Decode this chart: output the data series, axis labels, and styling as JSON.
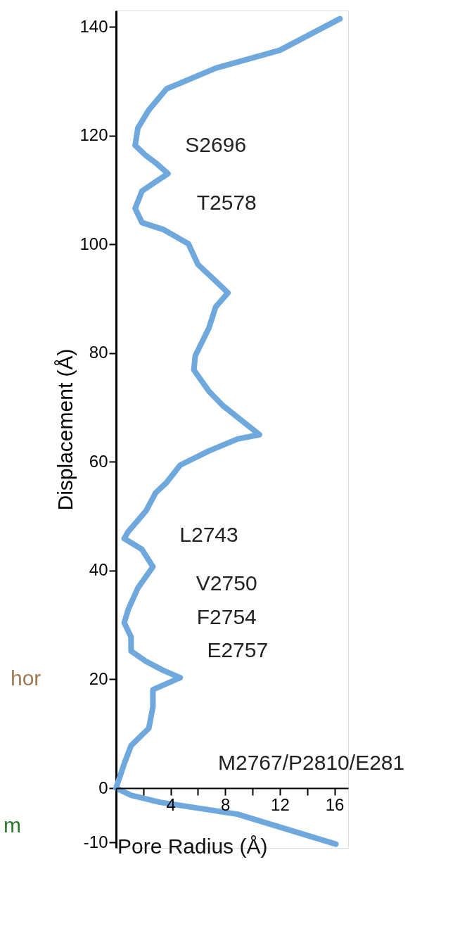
{
  "chart_data": {
    "type": "line",
    "xlabel": "Pore Radius (Å)",
    "ylabel": "Displacement (Å)",
    "x": [
      16.4,
      12.0,
      7.3,
      3.7,
      2.4,
      1.6,
      1.4,
      2.2,
      2.9,
      3.8,
      2.9,
      1.9,
      1.4,
      1.9,
      3.5,
      5.3,
      6.0,
      7.1,
      8.2,
      7.3,
      6.8,
      5.8,
      5.7,
      6.8,
      7.8,
      9.1,
      10.5,
      8.9,
      6.8,
      4.7,
      3.7,
      2.9,
      2.2,
      0.9,
      0.6,
      1.9,
      2.7,
      1.6,
      0.9,
      0.6,
      1.1,
      1.1,
      2.2,
      3.5,
      4.7,
      2.7,
      2.7,
      2.4,
      1.1,
      0.6,
      0,
      1.1,
      3.2,
      8.9,
      16.1
    ],
    "series": [
      {
        "color": "#6fa8dc",
        "values": [
          141.5,
          135.7,
          132.4,
          128.6,
          124.7,
          121.4,
          118.2,
          116.3,
          115,
          113,
          111.5,
          109.8,
          106.6,
          104,
          102.7,
          100.1,
          96.3,
          93.7,
          91.1,
          88.5,
          84.6,
          79.5,
          76.9,
          73,
          70.4,
          67.8,
          65,
          64.2,
          62,
          59.4,
          56.2,
          54.3,
          51,
          47.2,
          45.9,
          43.9,
          40.7,
          36.8,
          32.9,
          30.4,
          27.8,
          25.2,
          23.3,
          21.6,
          20.3,
          18.1,
          14.9,
          11,
          7.8,
          4.5,
          0,
          -1.3,
          -2.6,
          -4.8,
          -10.3
        ]
      }
    ],
    "xlim": [
      0,
      17
    ],
    "xticks": [
      {
        "value": 0,
        "label": null
      },
      {
        "value": 2,
        "label": null
      },
      4,
      {
        "value": 6,
        "label": null
      },
      8,
      {
        "value": 10,
        "label": null
      },
      12,
      {
        "value": 14,
        "label": null
      },
      16
    ],
    "ylim": [
      -11,
      143
    ],
    "yticks": [
      -10,
      0,
      20,
      40,
      60,
      80,
      100,
      120,
      140
    ],
    "grid": false,
    "line_style": "solid",
    "annotations": [
      "S2696",
      "T2578",
      "L2743",
      "V2750",
      "F2754",
      "E2757",
      "M2767/P2810/E281",
      "hor",
      "m"
    ]
  }
}
